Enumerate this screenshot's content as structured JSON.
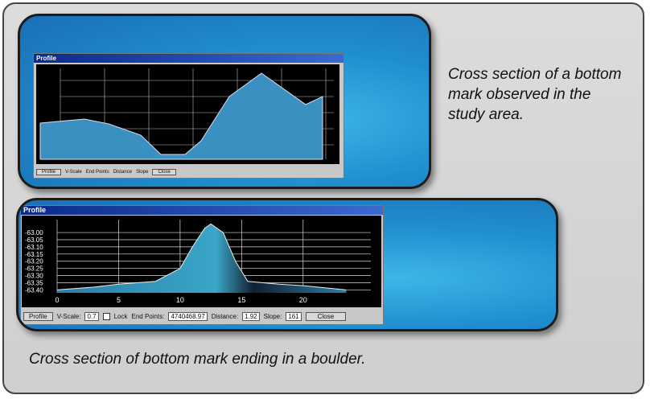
{
  "caption_top": "Cross section of a bottom mark observed in the study area.",
  "caption_bottom": "Cross section of bottom mark ending in a boulder.",
  "window_top": {
    "title": "Profile",
    "controls": [
      "Profile",
      "V-Scale",
      "End Points",
      "Distance",
      "Slope",
      "Close"
    ]
  },
  "window_bottom": {
    "title": "Profile",
    "controls": {
      "profile": "Profile",
      "vscale_label": "V-Scale:",
      "vscale_value": "0.7",
      "lock": "Lock",
      "endpoints_label": "End Points:",
      "endpoints_value": "4740468.97",
      "distance_label": "Distance:",
      "distance_value": "1.92",
      "slope_label": "Slope:",
      "slope_value": "161",
      "close": "Close"
    },
    "chart_data": {
      "type": "area",
      "x": [
        0,
        3,
        5,
        8,
        10,
        11,
        12,
        12.5,
        13.5,
        14.5,
        15.5,
        18,
        20,
        23.5
      ],
      "values": [
        -63.4,
        -63.38,
        -63.36,
        -63.34,
        -63.25,
        -63.1,
        -62.97,
        -62.94,
        -63.0,
        -63.2,
        -63.34,
        -63.36,
        -63.37,
        -63.4
      ],
      "color": "#3aa6c8",
      "xlim": [
        0,
        24.2
      ],
      "ylim": [
        -63.42,
        -62.91
      ],
      "xticks": [
        0,
        5,
        10,
        15,
        20
      ],
      "yticks": [
        {
          "value": -63.0,
          "label": "-63.00"
        },
        {
          "value": -63.05,
          "label": "-63.05"
        },
        {
          "value": -63.1,
          "label": "-63.10"
        },
        {
          "value": -63.15,
          "label": "-63.15"
        },
        {
          "value": -63.2,
          "label": "-63.20"
        },
        {
          "value": -63.25,
          "label": "-63.25"
        },
        {
          "value": -63.3,
          "label": "-63.30"
        },
        {
          "value": -63.35,
          "label": "-63.35"
        },
        {
          "value": -63.4,
          "label": "-63.40"
        }
      ],
      "grid": true
    }
  }
}
